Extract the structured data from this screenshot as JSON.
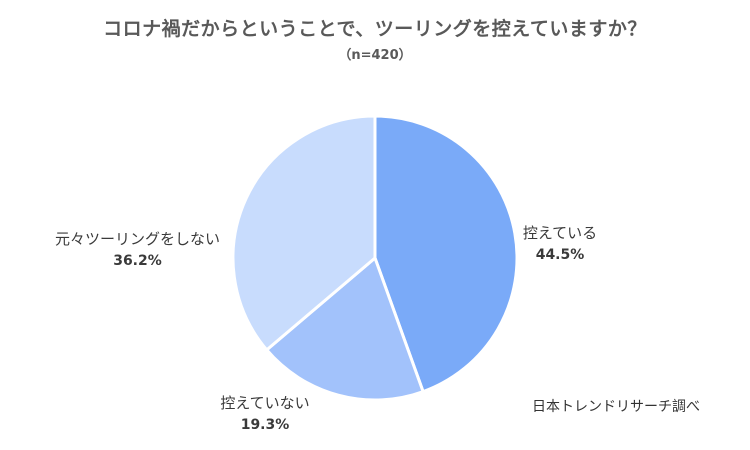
{
  "chart_data": {
    "type": "pie",
    "title": "コロナ禍だからということで、ツーリングを控えていますか？",
    "subtitle": "（n=420）",
    "slices": [
      {
        "label": "控えている",
        "value": 44.5,
        "value_label": "44.5%",
        "color": "#7aaaf8"
      },
      {
        "label": "控えていない",
        "value": 19.3,
        "value_label": "19.3%",
        "color": "#a2c2fb"
      },
      {
        "label": "元々ツーリングをしない",
        "value": 36.2,
        "value_label": "36.2%",
        "color": "#c8dcfd"
      }
    ],
    "source": "日本トレンドリサーチ調べ"
  }
}
